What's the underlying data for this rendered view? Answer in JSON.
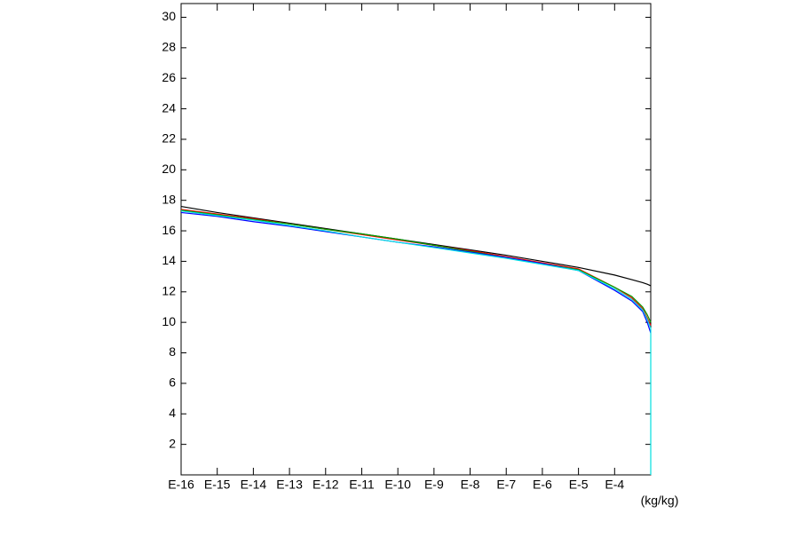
{
  "chart_data": {
    "type": "line",
    "x_scale": "log",
    "x_unit_label": "(kg/kg)",
    "x": [
      1e-16,
      1e-15,
      1e-14,
      1e-13,
      1e-12,
      1e-11,
      1e-10,
      1e-09,
      1e-08,
      1e-07,
      1e-06,
      1e-05,
      0.0001,
      0.0003,
      0.0006,
      0.0008,
      0.001,
      0.001
    ],
    "series": [
      {
        "color": "#000000",
        "values": [
          17.6,
          17.2,
          16.85,
          16.5,
          16.15,
          15.8,
          15.45,
          15.1,
          14.75,
          14.4,
          14.0,
          13.6,
          13.1,
          12.8,
          12.6,
          12.5,
          12.4,
          null
        ]
      },
      {
        "color": "#ff0000",
        "values": [
          17.4,
          17.1,
          16.8,
          16.45,
          16.1,
          15.75,
          15.4,
          15.05,
          14.7,
          14.3,
          13.9,
          13.5,
          12.3,
          11.6,
          10.9,
          10.3,
          9.8,
          null
        ]
      },
      {
        "color": "#00a000",
        "values": [
          17.35,
          17.05,
          16.75,
          16.45,
          16.1,
          15.8,
          15.45,
          15.05,
          14.65,
          14.25,
          13.85,
          13.45,
          12.3,
          11.7,
          11.0,
          10.5,
          10.0,
          null
        ]
      },
      {
        "color": "#0000ff",
        "values": [
          17.2,
          16.95,
          16.6,
          16.3,
          15.95,
          15.6,
          15.25,
          14.95,
          14.6,
          14.25,
          13.85,
          13.4,
          12.1,
          11.4,
          10.7,
          10.0,
          9.3,
          null
        ]
      },
      {
        "color": "#00e0e0",
        "values": [
          17.3,
          17.0,
          16.7,
          16.35,
          16.0,
          15.6,
          15.25,
          14.9,
          14.55,
          14.2,
          13.8,
          13.4,
          12.2,
          11.5,
          10.8,
          10.2,
          9.6,
          0
        ]
      }
    ],
    "xlim": [
      1e-16,
      0.001
    ],
    "xticks": [
      {
        "value": 1e-16,
        "label": "E-16"
      },
      {
        "value": 1e-15,
        "label": "E-15"
      },
      {
        "value": 1e-14,
        "label": "E-14"
      },
      {
        "value": 1e-13,
        "label": "E-13"
      },
      {
        "value": 1e-12,
        "label": "E-12"
      },
      {
        "value": 1e-11,
        "label": "E-11"
      },
      {
        "value": 1e-10,
        "label": "E-10"
      },
      {
        "value": 1e-09,
        "label": "E-9"
      },
      {
        "value": 1e-08,
        "label": "E-8"
      },
      {
        "value": 1e-07,
        "label": "E-7"
      },
      {
        "value": 1e-06,
        "label": "E-6"
      },
      {
        "value": 1e-05,
        "label": "E-5"
      },
      {
        "value": 0.0001,
        "label": "E-4"
      }
    ],
    "ylim": [
      0,
      30.9
    ],
    "yticks": [
      2,
      4,
      6,
      8,
      10,
      12,
      14,
      16,
      18,
      20,
      22,
      24,
      26,
      28,
      30
    ]
  }
}
